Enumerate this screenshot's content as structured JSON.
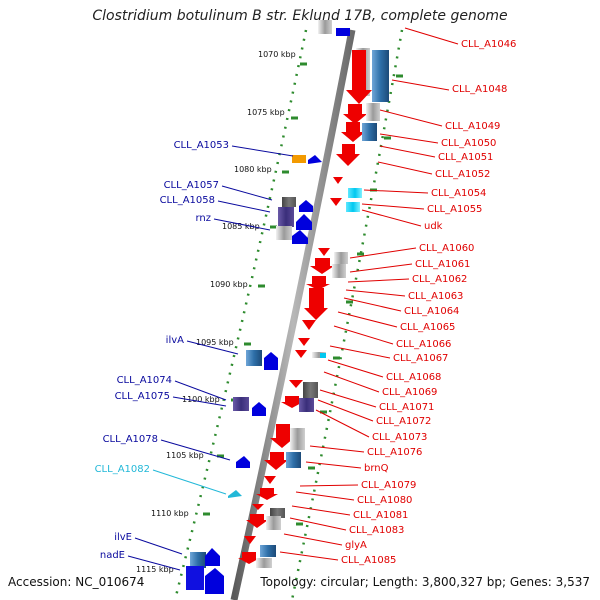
{
  "title": "Clostridium botulinum B str. Eklund 17B, complete genome",
  "footer": {
    "accession": "Accession: NC_010674",
    "summary": "Topology: circular; Length: 3,800,327 bp; Genes: 3,537"
  },
  "colors": {
    "left_label": "#0a0a9e",
    "left_label_highlight": "#22b8d8",
    "right_label": "#e00000",
    "backbone": "#8a8a8a",
    "tick_dot": "#2e8b2e",
    "tick_major": "#2e8b2e"
  },
  "kbp_ticks": [
    "1070 kbp",
    "1075 kbp",
    "1080 kbp",
    "1085 kbp",
    "1090 kbp",
    "1095 kbp",
    "1100 kbp",
    "1105 kbp",
    "1110 kbp",
    "1115 kbp"
  ],
  "left_labels": [
    {
      "text": "CLL_A1053",
      "highlight": false
    },
    {
      "text": "CLL_A1057",
      "highlight": false
    },
    {
      "text": "CLL_A1058",
      "highlight": false
    },
    {
      "text": "rnz",
      "highlight": false
    },
    {
      "text": "ilvA",
      "highlight": false
    },
    {
      "text": "CLL_A1074",
      "highlight": false
    },
    {
      "text": "CLL_A1075",
      "highlight": false
    },
    {
      "text": "CLL_A1078",
      "highlight": false
    },
    {
      "text": "CLL_A1082",
      "highlight": true
    },
    {
      "text": "ilvE",
      "highlight": false
    },
    {
      "text": "nadE",
      "highlight": false
    }
  ],
  "right_labels": [
    "CLL_A1046",
    "CLL_A1048",
    "CLL_A1049",
    "CLL_A1050",
    "CLL_A1051",
    "CLL_A1052",
    "CLL_A1054",
    "CLL_A1055",
    "udk",
    "CLL_A1060",
    "CLL_A1061",
    "CLL_A1062",
    "CLL_A1063",
    "CLL_A1064",
    "CLL_A1065",
    "CLL_A1066",
    "CLL_A1067",
    "CLL_A1068",
    "CLL_A1069",
    "CLL_A1071",
    "CLL_A1072",
    "CLL_A1073",
    "CLL_A1076",
    "brnQ",
    "CLL_A1079",
    "CLL_A1080",
    "CLL_A1081",
    "CLL_A1083",
    "glyA",
    "CLL_A1085"
  ]
}
